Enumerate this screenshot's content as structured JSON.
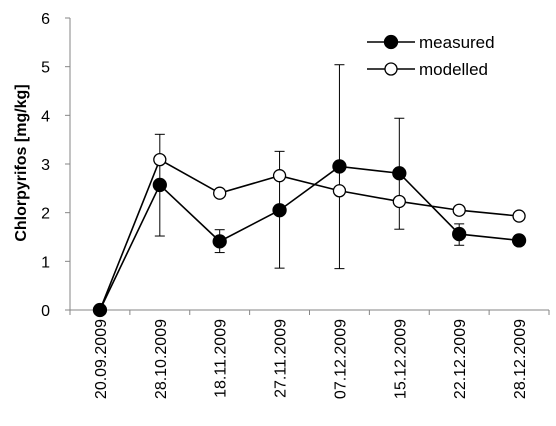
{
  "chart_data": {
    "type": "line",
    "title": "",
    "xlabel": "",
    "ylabel": "Chlorpyrifos [mg/kg]",
    "categories": [
      "20.09.2009",
      "28.10.2009",
      "18.11.2009",
      "27.11.2009",
      "07.12.2009",
      "15.12.2009",
      "22.12.2009",
      "28.12.2009"
    ],
    "ylim": [
      0,
      6
    ],
    "yticks": [
      0,
      1,
      2,
      3,
      4,
      5,
      6
    ],
    "grid": false,
    "legend_position": "top-right",
    "series": [
      {
        "name": "measured",
        "marker": "filled-circle",
        "color": "#000000",
        "values": [
          0,
          2.57,
          1.41,
          2.05,
          2.95,
          2.81,
          1.56,
          1.43
        ],
        "error_low": [
          0,
          1.52,
          1.18,
          0.86,
          0.85,
          1.66,
          1.33,
          1.33
        ],
        "error_high": [
          0,
          3.61,
          1.65,
          3.26,
          5.04,
          3.94,
          1.77,
          1.53
        ]
      },
      {
        "name": "modelled",
        "marker": "open-circle",
        "color": "#000000",
        "values": [
          0,
          3.09,
          2.4,
          2.76,
          2.45,
          2.23,
          2.05,
          1.93
        ]
      }
    ]
  }
}
